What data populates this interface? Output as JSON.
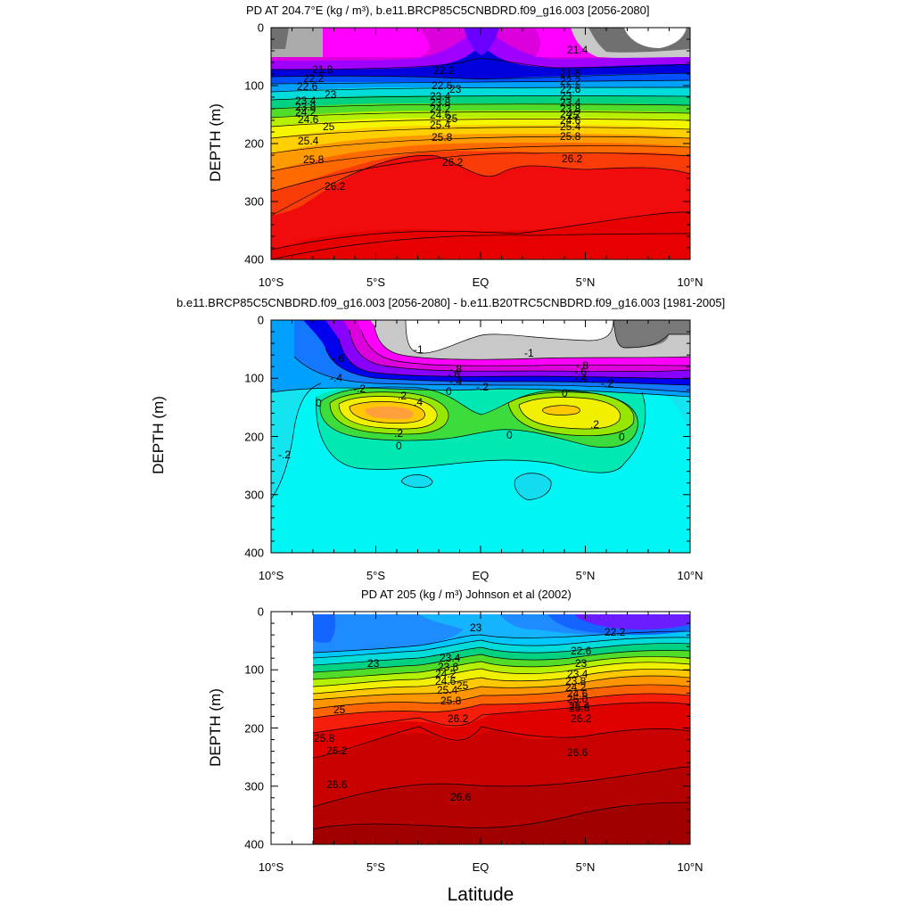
{
  "xlabel": "Latitude",
  "x_ticks": [
    "10°S",
    "5°S",
    "EQ",
    "5°N",
    "10°N"
  ],
  "y_ticks": [
    "0",
    "100",
    "200",
    "300",
    "400"
  ],
  "chart_data": [
    {
      "type": "heatmap",
      "title": "PD AT 204.7°E (kg / m³), b.e11.BRCP85C5CNBDRD.f09_g16.003 [2056-2080]",
      "xlabel": "",
      "ylabel": "DEPTH (m)",
      "xlim": [
        -10,
        10
      ],
      "ylim": [
        400,
        0
      ],
      "contour_labels": [
        "21.4",
        "21.8",
        "22.2",
        "22.6",
        "23",
        "23.4",
        "23.8",
        "24.2",
        "24.6",
        "25",
        "25.4",
        "25.8",
        "26.2"
      ]
    },
    {
      "type": "heatmap",
      "title": "b.e11.BRCP85C5CNBDRD.f09_g16.003 [2056-2080] - b.e11.B20TRC5CNBDRD.f09_g16.003 [1981-2005]",
      "xlabel": "",
      "ylabel": "DEPTH (m)",
      "xlim": [
        -10,
        10
      ],
      "ylim": [
        400,
        0
      ],
      "contour_labels": [
        "-1",
        "-.8",
        "-.6",
        "-.4",
        "-.2",
        "0",
        ".2",
        ".4"
      ]
    },
    {
      "type": "heatmap",
      "title": "PD AT 205 (kg / m³) Johnson et al (2002)",
      "xlabel": "Latitude",
      "ylabel": "DEPTH (m)",
      "xlim": [
        -10,
        10
      ],
      "ylim": [
        400,
        0
      ],
      "contour_labels": [
        "22.2",
        "22.6",
        "23",
        "23.4",
        "23.8",
        "24.2",
        "24.6",
        "25",
        "25.4",
        "25.8",
        "26.2",
        "26.6"
      ]
    }
  ]
}
